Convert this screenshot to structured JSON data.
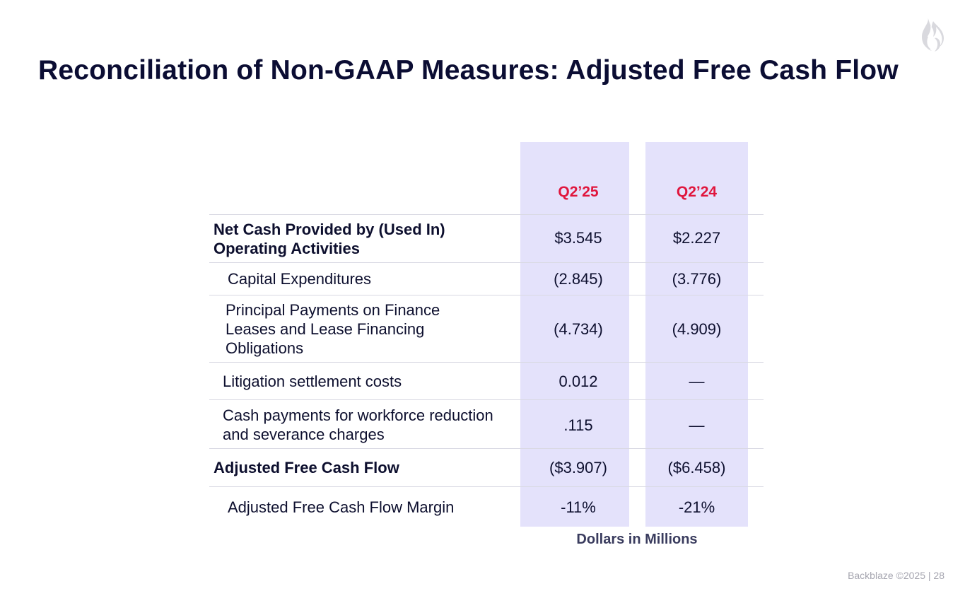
{
  "title": "Reconciliation of Non-GAAP Measures: Adjusted Free Cash Flow",
  "columns": [
    "Q2’25",
    "Q2’24"
  ],
  "rows": [
    {
      "label": "Net Cash Provided by (Used In) Operating Activities",
      "bold": true,
      "values": [
        "$3.545",
        "$2.227"
      ]
    },
    {
      "label": "Capital Expenditures",
      "bold": false,
      "values": [
        "(2.845)",
        "(3.776)"
      ]
    },
    {
      "label": "Principal Payments on Finance Leases and Lease Financing Obligations",
      "bold": false,
      "values": [
        "(4.734)",
        "(4.909)"
      ]
    },
    {
      "label": "Litigation settlement costs",
      "bold": false,
      "values": [
        "0.012",
        "—"
      ]
    },
    {
      "label": "Cash payments for workforce reduction and severance charges",
      "bold": false,
      "values": [
        ".115",
        "—"
      ]
    },
    {
      "label": "Adjusted Free Cash Flow",
      "bold": true,
      "values": [
        "($3.907)",
        "($6.458)"
      ]
    },
    {
      "label": "Adjusted Free Cash Flow Margin",
      "bold": false,
      "values": [
        "-11%",
        "-21%"
      ]
    }
  ],
  "caption": "Dollars in Millions",
  "footer": "Backblaze ©2025  |  28",
  "colors": {
    "accent_red": "#e0163d",
    "column_fill": "#e4e2fb",
    "title": "#0b0d33"
  },
  "icons": {
    "logo": "flame-icon"
  }
}
